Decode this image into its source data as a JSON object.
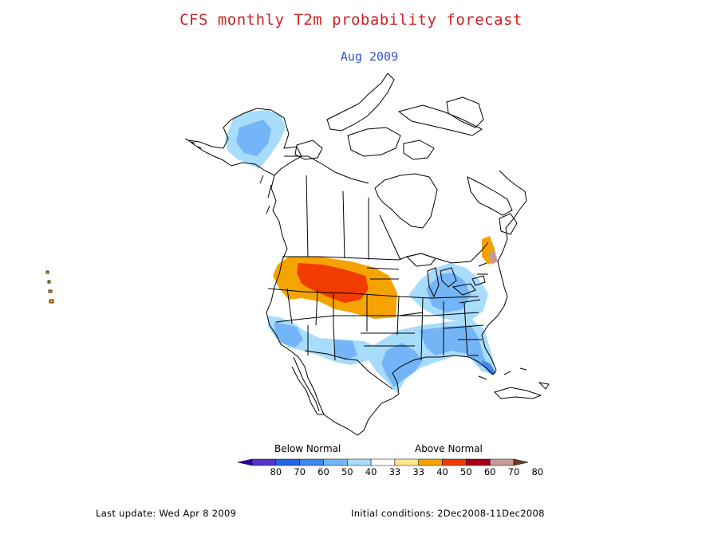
{
  "header": {
    "title": "CFS monthly T2m probability forecast",
    "subtitle": "Aug 2009",
    "title_color": "#cc2222",
    "subtitle_color": "#3355cc"
  },
  "legend": {
    "below_label": "Below Normal",
    "above_label": "Above Normal",
    "ticks": [
      "80",
      "70",
      "60",
      "50",
      "40",
      "33",
      "33",
      "40",
      "50",
      "60",
      "70",
      "80"
    ],
    "colors": [
      "#2a00a8",
      "#5533cc",
      "#2266e6",
      "#3b88f0",
      "#73b5f7",
      "#a8dcfb",
      "#ffffff",
      "#ffe68c",
      "#f5a300",
      "#f03c00",
      "#a80014",
      "#c89a94",
      "#6e3b28"
    ]
  },
  "footer": {
    "last_update": "Last update: Wed Apr 8 2009",
    "initial_conditions": "Initial conditions: 2Dec2008-11Dec2008"
  }
}
